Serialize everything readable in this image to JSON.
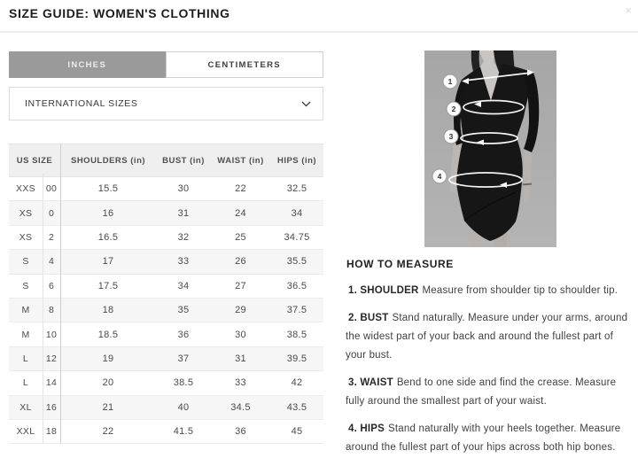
{
  "header": {
    "title": "SIZE GUIDE: WOMEN'S CLOTHING",
    "close": "×"
  },
  "unit_tabs": [
    {
      "label": "INCHES",
      "active": true
    },
    {
      "label": "CENTIMETERS",
      "active": false
    }
  ],
  "region_dropdown": {
    "value": "INTERNATIONAL SIZES"
  },
  "size_table": {
    "headers": [
      "US SIZE",
      "SHOULDERS (in)",
      "BUST (in)",
      "WAIST (in)",
      "HIPS (in)"
    ],
    "rows": [
      [
        "XXS",
        "00",
        "15.5",
        "30",
        "22",
        "32.5"
      ],
      [
        "XS",
        "0",
        "16",
        "31",
        "24",
        "34"
      ],
      [
        "XS",
        "2",
        "16.5",
        "32",
        "25",
        "34.75"
      ],
      [
        "S",
        "4",
        "17",
        "33",
        "26",
        "35.5"
      ],
      [
        "S",
        "6",
        "17.5",
        "34",
        "27",
        "36.5"
      ],
      [
        "M",
        "8",
        "18",
        "35",
        "29",
        "37.5"
      ],
      [
        "M",
        "10",
        "18.5",
        "36",
        "30",
        "38.5"
      ],
      [
        "L",
        "12",
        "19",
        "37",
        "31",
        "39.5"
      ],
      [
        "L",
        "14",
        "20",
        "38.5",
        "33",
        "42"
      ],
      [
        "XL",
        "16",
        "21",
        "40",
        "34.5",
        "43.5"
      ],
      [
        "XXL",
        "18",
        "22",
        "41.5",
        "36",
        "45"
      ]
    ]
  },
  "figure": {
    "markers": [
      "1",
      "2",
      "3",
      "4"
    ]
  },
  "how_to_measure": {
    "heading": "HOW TO MEASURE",
    "steps": [
      {
        "label": "1. SHOULDER",
        "text": "Measure from shoulder tip to shoulder tip."
      },
      {
        "label": "2. BUST",
        "text": "Stand naturally. Measure under your arms, around the widest part of your back and around the fullest part of your bust."
      },
      {
        "label": "3. WAIST",
        "text": "Bend to one side and find the crease. Measure fully around the smallest part of your waist."
      },
      {
        "label": "4. HIPS",
        "text": "Stand naturally with your heels together. Measure around the fullest part of your hips across both hip bones."
      }
    ]
  },
  "colors": {
    "tab_active_bg": "#9a9a9a",
    "table_header_bg": "#efefef",
    "row_alt_bg": "#f6f6f6",
    "title_text": "#1d1d1d"
  }
}
